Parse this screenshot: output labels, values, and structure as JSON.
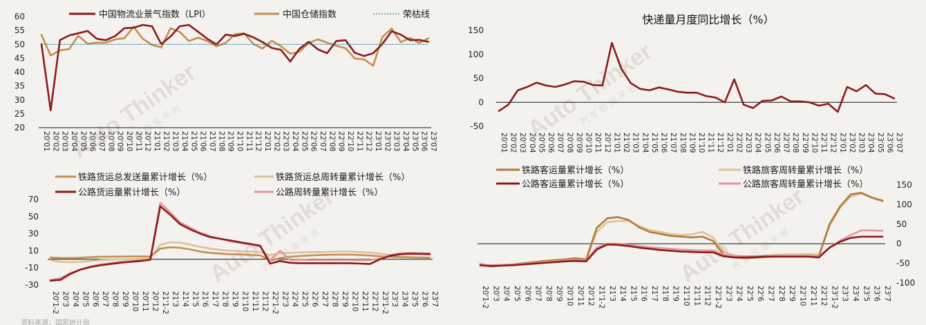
{
  "colors": {
    "maroon": "#8b1a1a",
    "gold": "#c48e4e",
    "beige": "#ddc09a",
    "pink": "#e3979b",
    "brown": "#b07a3a",
    "teal": "#2f7fa6"
  },
  "watermark": {
    "brand": "Auto Thinker",
    "sub": "汽 车 智 库 平 台"
  },
  "charts": {
    "lpi": {
      "legend": {
        "lpi": "中国物流业景气指数（LPI）",
        "storage": "中国仓储指数",
        "line50": "荣枯线"
      },
      "yticks": [
        "60",
        "55",
        "50",
        "45",
        "40",
        "35",
        "30",
        "25",
        "20"
      ],
      "xticks": [
        "20'01",
        "20'02",
        "20'03",
        "20'04",
        "20'05",
        "20'06",
        "20'07",
        "20'08",
        "20'09",
        "20'10",
        "20'11",
        "20'12",
        "21'01",
        "21'02",
        "21'03",
        "21'04",
        "21'05",
        "21'06",
        "21'07",
        "21'08",
        "21'09",
        "21'10",
        "21'11",
        "21'12",
        "22'01",
        "22'02",
        "22'03",
        "22'04",
        "22'05",
        "22'06",
        "22'07",
        "22'08",
        "22'09",
        "22'10",
        "22'11",
        "22'12",
        "23'01",
        "23'02",
        "23'03",
        "23'04",
        "23'05",
        "23'06",
        "23'07"
      ]
    },
    "express": {
      "title": "快递量月度同比增长（%）",
      "yticks": [
        "150",
        "100",
        "50",
        "0",
        "-50"
      ],
      "xticks": [
        "20'01",
        "20'02",
        "20'03",
        "20'04",
        "20'05",
        "20'06",
        "20'07",
        "20'08",
        "20'09",
        "20'10",
        "20'11",
        "20'12",
        "21'01",
        "21'02",
        "21'03",
        "21'04",
        "21'05",
        "21'06",
        "21'07",
        "21'08",
        "21'09",
        "21'10",
        "21'11",
        "21'12",
        "22'01",
        "22'02",
        "22'03",
        "22'04",
        "22'05",
        "22'06",
        "22'07",
        "22'08",
        "22'09",
        "22'10",
        "22'11",
        "22'12",
        "23'01",
        "23'02",
        "23'03",
        "23'04",
        "23'05",
        "23'06",
        "23'07"
      ]
    },
    "freight": {
      "legend": {
        "rail_vol": "铁路货运总发送量累计增长（%）",
        "rail_turn": "铁路货运总周转量累计增长（%）",
        "road_vol": "公路货运量累计增长（%）",
        "road_turn": "公路周转量累计增长（%）"
      },
      "yticks": [
        "70",
        "50",
        "30",
        "10",
        "-10",
        "-30"
      ],
      "xticks": [
        "20'1-2",
        "20'3",
        "20'4",
        "20'5",
        "20'6",
        "20'7",
        "20'8",
        "20'9",
        "20'10",
        "20'11",
        "20'12",
        "21'1-2",
        "21'3",
        "21'4",
        "21'5",
        "21'6",
        "21'7",
        "21'8",
        "21'9",
        "21'10",
        "21'11",
        "21'12",
        "22'1-2",
        "22'3",
        "22'4",
        "22'5",
        "22'6",
        "22'7",
        "22'8",
        "22'9",
        "22'10",
        "22'11",
        "22'12",
        "23'1-2",
        "23'3",
        "23'4",
        "23'5",
        "23'6",
        "23'7"
      ],
      "footnote": "资料来源：国家统计局"
    },
    "passenger": {
      "legend": {
        "rail_vol": "铁路客运量累计增长（%）",
        "rail_turn": "铁路旅客周转量累计增长（%）",
        "road_vol": "公路客运量累计增长（%）",
        "road_turn": "公路旅客周转量累计增长（%）"
      },
      "yticks": [
        "150",
        "100",
        "50",
        "0",
        "-50",
        "-100"
      ],
      "xticks": [
        "20'1-2",
        "20'3",
        "20'4",
        "20'5",
        "20'6",
        "20'7",
        "20'8",
        "20'9",
        "20'10",
        "20'11",
        "20'12",
        "21'1-2",
        "21'3",
        "21'4",
        "21'5",
        "21'6",
        "21'7",
        "21'8",
        "21'9",
        "21'10",
        "21'11",
        "21'12",
        "22'1-2",
        "22'3",
        "22'4",
        "22'5",
        "22'6",
        "22'7",
        "22'8",
        "22'9",
        "22'10",
        "22'11",
        "22'12",
        "23'1-2",
        "23'3",
        "23'4",
        "23'5",
        "23'6",
        "23'7"
      ]
    }
  },
  "chart_data": [
    {
      "type": "line",
      "x": [
        "20'01",
        "20'02",
        "20'03",
        "20'04",
        "20'05",
        "20'06",
        "20'07",
        "20'08",
        "20'09",
        "20'10",
        "20'11",
        "20'12",
        "21'01",
        "21'02",
        "21'03",
        "21'04",
        "21'05",
        "21'06",
        "21'07",
        "21'08",
        "21'09",
        "21'10",
        "21'11",
        "21'12",
        "22'01",
        "22'02",
        "22'03",
        "22'04",
        "22'05",
        "22'06",
        "22'07",
        "22'08",
        "22'09",
        "22'10",
        "22'11",
        "22'12",
        "23'01",
        "23'02",
        "23'03",
        "23'04",
        "23'05",
        "23'06",
        "23'07"
      ],
      "ylim": [
        20,
        60
      ],
      "series": [
        {
          "name": "中国物流业景气指数（LPI）",
          "values": [
            50.1,
            26.2,
            51.5,
            53.2,
            54.0,
            54.8,
            52.0,
            51.5,
            53.0,
            55.8,
            56.0,
            57.0,
            56.5,
            50.1,
            52.8,
            56.5,
            57.0,
            54.5,
            52.0,
            50.0,
            53.5,
            53.0,
            53.8,
            52.5,
            50.8,
            48.7,
            48.0,
            43.8,
            48.4,
            50.9,
            48.2,
            46.8,
            51.2,
            51.5,
            47.0,
            45.8,
            46.8,
            50.1,
            54.7,
            53.5,
            51.5,
            51.6,
            50.9
          ]
        },
        {
          "name": "中国仓储指数",
          "values": [
            53.4,
            46.0,
            47.8,
            48.3,
            53.1,
            50.2,
            50.6,
            50.6,
            51.8,
            52.2,
            56.3,
            52.0,
            49.8,
            48.9,
            55.8,
            54.5,
            51.2,
            52.4,
            51.2,
            49.3,
            50.5,
            53.7,
            54.0,
            50.1,
            48.5,
            51.3,
            49.3,
            46.6,
            47.3,
            50.5,
            51.8,
            50.6,
            49.5,
            48.6,
            44.9,
            44.6,
            42.3,
            52.6,
            55.7,
            50.8,
            52.3,
            50.5,
            52.2
          ]
        },
        {
          "name": "荣枯线",
          "values": [
            50,
            50,
            50,
            50,
            50,
            50,
            50,
            50,
            50,
            50,
            50,
            50,
            50,
            50,
            50,
            50,
            50,
            50,
            50,
            50,
            50,
            50,
            50,
            50,
            50,
            50,
            50,
            50,
            50,
            50,
            50,
            50,
            50,
            50,
            50,
            50,
            50,
            50,
            50,
            50,
            50,
            50,
            50
          ]
        }
      ]
    },
    {
      "type": "line",
      "title": "快递量月度同比增长（%）",
      "x": [
        "20'01",
        "20'02",
        "20'03",
        "20'04",
        "20'05",
        "20'06",
        "20'07",
        "20'08",
        "20'09",
        "20'10",
        "20'11",
        "20'12",
        "21'01",
        "21'02",
        "21'03",
        "21'04",
        "21'05",
        "21'06",
        "21'07",
        "21'08",
        "21'09",
        "21'10",
        "21'11",
        "21'12",
        "22'01",
        "22'02",
        "22'03",
        "22'04",
        "22'05",
        "22'06",
        "22'07",
        "22'08",
        "22'09",
        "22'10",
        "22'11",
        "22'12",
        "23'01",
        "23'02",
        "23'03",
        "23'04",
        "23'05",
        "23'06",
        "23'07"
      ],
      "ylim": [
        -50,
        150
      ],
      "series": [
        {
          "values": [
            -18,
            -5,
            25,
            32,
            41,
            35,
            32,
            37,
            44,
            43,
            36,
            35,
            124,
            70,
            40,
            28,
            25,
            31,
            27,
            22,
            20,
            20,
            13,
            10,
            0,
            48,
            -5,
            -12,
            3,
            4,
            12,
            2,
            2,
            0,
            -7,
            -3,
            -20,
            32,
            23,
            36,
            18,
            17,
            8
          ]
        }
      ]
    },
    {
      "type": "line",
      "x": [
        "20'1-2",
        "20'3",
        "20'4",
        "20'5",
        "20'6",
        "20'7",
        "20'8",
        "20'9",
        "20'10",
        "20'11",
        "20'12",
        "21'1-2",
        "21'3",
        "21'4",
        "21'5",
        "21'6",
        "21'7",
        "21'8",
        "21'9",
        "21'10",
        "21'11",
        "21'12",
        "22'1-2",
        "22'3",
        "22'4",
        "22'5",
        "22'6",
        "22'7",
        "22'8",
        "22'9",
        "22'10",
        "22'11",
        "22'12",
        "23'1-2",
        "23'3",
        "23'4",
        "23'5",
        "23'6",
        "23'7"
      ],
      "ylim": [
        -30,
        70
      ],
      "series": [
        {
          "name": "铁路货运总发送量累计增长（%）",
          "values": [
            2,
            1.5,
            1.5,
            1.8,
            2.5,
            3,
            3,
            3.2,
            3.3,
            3.3,
            3.2,
            12.5,
            14,
            13.5,
            11.5,
            9,
            7.5,
            6.8,
            6,
            5.7,
            5.2,
            4.7,
            -1.5,
            1.5,
            3,
            3.8,
            4.5,
            5,
            5.3,
            5.5,
            5.5,
            5,
            4.5,
            3.5,
            3,
            2.5,
            2.3,
            2.1,
            1.9
          ]
        },
        {
          "name": "铁路货运总周转量累计增长（%）",
          "values": [
            -1,
            -3,
            -3.5,
            -3,
            -2,
            -1,
            -0.5,
            0,
            0.2,
            0.5,
            1,
            17,
            20,
            19.5,
            17,
            14.5,
            12.5,
            11,
            10,
            9.5,
            9,
            8.5,
            5,
            7,
            7.5,
            8,
            8.5,
            8.5,
            8.8,
            9,
            9,
            8.5,
            8,
            6.5,
            5,
            3.5,
            2.5,
            2.2,
            2
          ]
        },
        {
          "name": "公路货运量累计增长（%）",
          "values": [
            -25,
            -24,
            -17,
            -12,
            -9,
            -7,
            -5.5,
            -4,
            -3,
            -2,
            -0.5,
            62,
            52,
            41,
            35,
            30,
            26,
            24,
            22,
            20,
            18,
            16,
            -5,
            -2,
            -4,
            -4.5,
            -4.5,
            -4.5,
            -4.5,
            -4.5,
            -4.5,
            -5,
            -5.5,
            0,
            4,
            6,
            6.5,
            6.3,
            6
          ]
        },
        {
          "name": "公路周转量累计增长（%）",
          "values": [
            -24,
            -22,
            -16,
            -12,
            -8.5,
            -6,
            -4.5,
            -3,
            -2,
            -1,
            0,
            66,
            55,
            43,
            37,
            31,
            27,
            24,
            21,
            19,
            17,
            15,
            -1,
            10,
            -1,
            -0.5,
            -1,
            -1,
            -1,
            -1,
            -1,
            -1,
            -1,
            1,
            5,
            7,
            7.5,
            7.3,
            7
          ]
        }
      ]
    },
    {
      "type": "line",
      "x": [
        "20'1-2",
        "20'3",
        "20'4",
        "20'5",
        "20'6",
        "20'7",
        "20'8",
        "20'9",
        "20'10",
        "20'11",
        "20'12",
        "21'1-2",
        "21'3",
        "21'4",
        "21'5",
        "21'6",
        "21'7",
        "21'8",
        "21'9",
        "21'10",
        "21'11",
        "21'12",
        "22'1-2",
        "22'3",
        "22'4",
        "22'5",
        "22'6",
        "22'7",
        "22'8",
        "22'9",
        "22'10",
        "22'11",
        "22'12",
        "23'1-2",
        "23'3",
        "23'4",
        "23'5",
        "23'6",
        "23'7"
      ],
      "ylim": [
        -100,
        150
      ],
      "series": [
        {
          "name": "铁路客运量累计增长（%）",
          "values": [
            -53,
            -58,
            -56,
            -53,
            -50,
            -47,
            -44,
            -42,
            -40,
            -37,
            -40,
            40,
            65,
            68,
            61,
            42,
            30,
            25,
            20,
            18,
            16,
            18,
            7,
            -28,
            -35,
            -37,
            -36,
            -34,
            -32,
            -31,
            -31,
            -31,
            -32,
            50,
            95,
            126,
            130,
            118,
            110
          ]
        },
        {
          "name": "铁路旅客周转量累计增长（%）",
          "values": [
            -50,
            -57,
            -56,
            -54,
            -51,
            -48,
            -46,
            -44,
            -42,
            -39,
            -42,
            30,
            55,
            58,
            58,
            45,
            35,
            30,
            25,
            22,
            24,
            30,
            16,
            -20,
            -30,
            -33,
            -32,
            -30,
            -28,
            -27,
            -27,
            -26,
            -28,
            45,
            92,
            120,
            128,
            117,
            108
          ]
        },
        {
          "name": "公路客运量累计增长（%）",
          "values": [
            -55,
            -57,
            -56,
            -55,
            -53,
            -51,
            -49,
            -47,
            -45,
            -44,
            -45,
            -15,
            -2,
            -3,
            -6,
            -10,
            -13,
            -16,
            -18,
            -20,
            -21,
            -22,
            -22,
            -32,
            -35,
            -35,
            -34,
            -33,
            -33,
            -33,
            -33,
            -33,
            -35,
            -10,
            5,
            15,
            18,
            18,
            18
          ]
        },
        {
          "name": "公路旅客周转量累计增长（%）",
          "values": [
            -54,
            -55,
            -54,
            -53,
            -51,
            -49,
            -47,
            -45,
            -43,
            -42,
            -43,
            -10,
            0,
            0,
            -3,
            -6,
            -9,
            -11,
            -13,
            -15,
            -16,
            -17,
            -17,
            -28,
            -31,
            -32,
            -32,
            -31,
            -31,
            -31,
            -31,
            -31,
            -33,
            -10,
            8,
            22,
            34,
            34,
            33
          ]
        }
      ]
    }
  ]
}
